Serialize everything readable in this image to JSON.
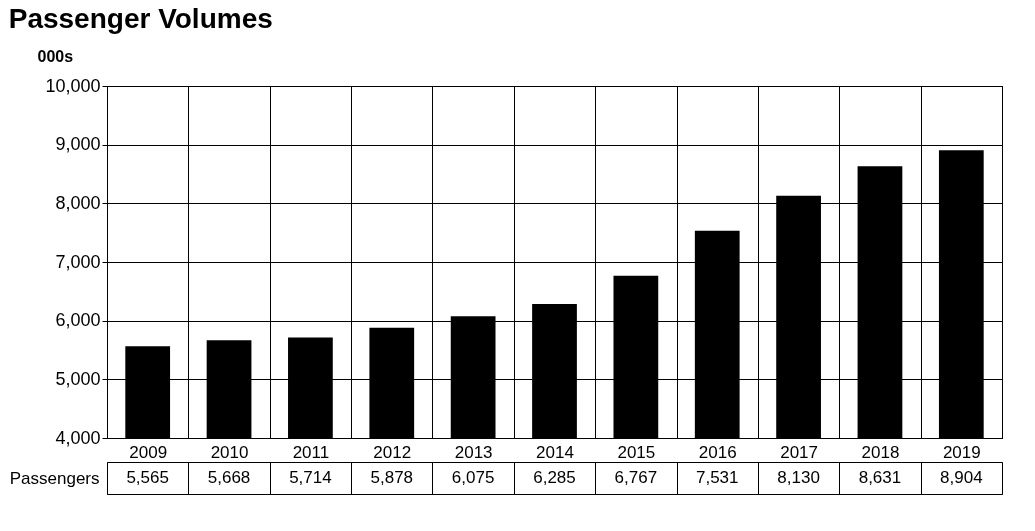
{
  "chart_data": {
    "type": "bar",
    "title": "Passenger Volumes",
    "ylabel": "000s",
    "categories": [
      "2009",
      "2010",
      "2011",
      "2012",
      "2013",
      "2014",
      "2015",
      "2016",
      "2017",
      "2018",
      "2019"
    ],
    "series": [
      {
        "name": "Passengers",
        "color": "#000000",
        "values": [
          5565,
          5668,
          5714,
          5878,
          6075,
          6285,
          6767,
          7531,
          8130,
          8631,
          8904
        ],
        "value_labels": [
          "5,565",
          "5,668",
          "5,714",
          "5,878",
          "6,075",
          "6,285",
          "6,767",
          "7,531",
          "8,130",
          "8,631",
          "8,904"
        ]
      }
    ],
    "ylim": [
      4000,
      10000
    ],
    "yticks": [
      {
        "value": 4000,
        "label": "4,000"
      },
      {
        "value": 5000,
        "label": "5,000"
      },
      {
        "value": 6000,
        "label": "6,000"
      },
      {
        "value": 7000,
        "label": "7,000"
      },
      {
        "value": 8000,
        "label": "8,000"
      },
      {
        "value": 9000,
        "label": "9,000"
      },
      {
        "value": 10000,
        "label": "10,000"
      }
    ],
    "grid": "y",
    "legend": "bottom"
  }
}
